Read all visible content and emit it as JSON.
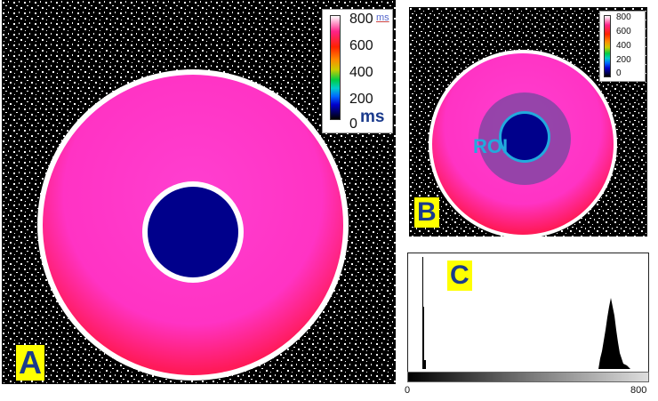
{
  "panels": {
    "a": {
      "label": "A"
    },
    "b": {
      "label": "B",
      "roi_label": "ROI"
    },
    "c": {
      "label": "C",
      "x_min": "0",
      "x_max": "800"
    }
  },
  "legend_a": {
    "ticks": [
      "800",
      "600",
      "400",
      "200",
      "0"
    ],
    "unit_small": "ms",
    "unit_big": "ms"
  },
  "legend_b": {
    "ticks": [
      "800",
      "600",
      "400",
      "200",
      "0"
    ]
  },
  "colors": {
    "background_noise": "#000000",
    "outer_ring_red": "#ff1a3c",
    "inner_ring_pink": "#ff33c4",
    "center_blue": "#00008b",
    "label_bg": "#ffff00",
    "label_text": "#1a3a8c",
    "roi_overlay": "#7846a0"
  }
}
